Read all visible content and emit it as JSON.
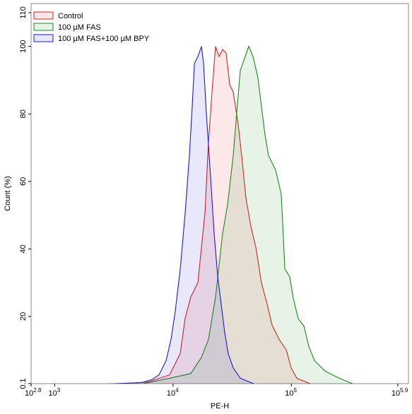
{
  "chart_data": {
    "type": "histogram-overlay",
    "x_label": "PE-H",
    "y_label": "Count (%)",
    "xscale": "log",
    "xlim": [
      630.96,
      977237
    ],
    "ylim": [
      0.1,
      112.7
    ],
    "xticks": [
      {
        "value": 630.96,
        "label": "10",
        "exponent": "2.8"
      },
      {
        "value": 1000,
        "label": "10",
        "exponent": "3"
      },
      {
        "value": 10000,
        "label": "10",
        "exponent": "4"
      },
      {
        "value": 100000,
        "label": "10",
        "exponent": "5"
      },
      {
        "value": 794328,
        "label": "10",
        "exponent": "5.9"
      }
    ],
    "yticks": [
      0.1,
      20,
      40,
      60,
      80,
      100,
      110
    ],
    "legend": "top-left",
    "series": [
      {
        "name": "Control",
        "color": "#e02020",
        "x": [
          3573,
          6194,
          9356,
          11490,
          12650,
          14130,
          16220,
          18620,
          19920,
          21340,
          22870,
          24500,
          26250,
          28120,
          30130,
          32230,
          35480,
          38020,
          41300,
          45500,
          50120,
          55850,
          62370,
          68710,
          78890,
          90570,
          99540,
          111200,
          146600
        ],
        "values": [
          0,
          0.6,
          2.7,
          9,
          19.5,
          25.8,
          30,
          50.9,
          71.8,
          86.5,
          100,
          97,
          99.1,
          98,
          88.6,
          86.5,
          77.1,
          67.6,
          55.1,
          46.7,
          40.4,
          30,
          23.7,
          17.4,
          13.2,
          10.1,
          4.8,
          1.7,
          0
        ]
      },
      {
        "name": "100 µM FAS",
        "color": "#1a8a1a",
        "x": [
          5395,
          9356,
          14130,
          17380,
          19920,
          22870,
          26250,
          28890,
          32230,
          34510,
          36980,
          39630,
          43650,
          47420,
          52220,
          55850,
          59840,
          64120,
          73620,
          82220,
          88100,
          96830,
          103700,
          114300,
          127600,
          140600,
          157000,
          192800,
          254100,
          334200
        ],
        "values": [
          0,
          1.7,
          3.1,
          7.9,
          13.2,
          25.7,
          44.6,
          53,
          67.6,
          80.2,
          92.8,
          95.9,
          100,
          97,
          90.7,
          82.3,
          73.9,
          67.6,
          63.4,
          56.1,
          34,
          31.8,
          25.5,
          19.3,
          17.2,
          11.1,
          6.9,
          3.8,
          1.7,
          0
        ]
      },
      {
        "name": "100 µM FAS+100 µM BPY",
        "color": "#1a1ad0",
        "x": [
          2712,
          5395,
          6627,
          7605,
          8730,
          9615,
          10440,
          11510,
          12670,
          13750,
          14530,
          15150,
          16220,
          17380,
          18110,
          19110,
          20760,
          22230,
          23820,
          25520,
          27350,
          29310,
          32230,
          36980,
          48750
        ],
        "values": [
          0,
          0.4,
          1.3,
          2.7,
          6.9,
          13.2,
          21.6,
          34.1,
          50.9,
          67.6,
          82.3,
          94.9,
          97,
          100,
          94.9,
          80.2,
          61.3,
          44.6,
          32,
          23.6,
          15.2,
          8.8,
          4.8,
          1.7,
          0
        ]
      }
    ]
  }
}
